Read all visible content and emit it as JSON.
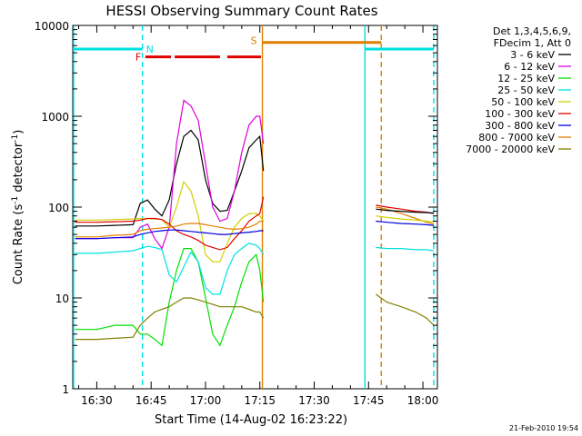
{
  "chart_data": {
    "type": "line",
    "title": "HESSI Observing Summary Count Rates",
    "xlabel": "Start Time (14-Aug-02 16:23:22)",
    "ylabel_main": "Count Rate (s",
    "ylabel_exp1": "-1",
    "ylabel_mid": " detector",
    "ylabel_exp2": "-1",
    "ylabel_end": ")",
    "yscale": "log",
    "ylim": [
      1,
      10000
    ],
    "xlim_minutes": [
      23.37,
      124.0
    ],
    "xticks": [
      {
        "m": 30,
        "label": "16:30"
      },
      {
        "m": 45,
        "label": "16:45"
      },
      {
        "m": 60,
        "label": "17:00"
      },
      {
        "m": 75,
        "label": "17:15"
      },
      {
        "m": 90,
        "label": "17:30"
      },
      {
        "m": 105,
        "label": "17:45"
      },
      {
        "m": 120,
        "label": "18:00"
      }
    ],
    "yticks": [
      {
        "v": 1,
        "label": "1"
      },
      {
        "v": 10,
        "label": "10"
      },
      {
        "v": 100,
        "label": "100"
      },
      {
        "v": 1000,
        "label": "1000"
      },
      {
        "v": 10000,
        "label": "10000"
      }
    ],
    "legend_header": [
      "Det 1,3,4,5,6,9,",
      "FDecim 1, Att 0"
    ],
    "series": [
      {
        "name": "3 - 6 keV",
        "color": "#000000",
        "x": [
          24,
          30,
          35,
          40,
          42,
          44,
          46,
          48,
          50,
          52,
          54,
          56,
          58,
          60,
          62,
          64,
          66,
          68,
          70,
          72,
          74,
          75,
          76
        ],
        "y": [
          62,
          62,
          63,
          64,
          110,
          120,
          95,
          80,
          120,
          300,
          600,
          700,
          550,
          200,
          110,
          90,
          92,
          150,
          250,
          450,
          550,
          600,
          250
        ]
      },
      {
        "name": "6 - 12 keV",
        "color": "#e000e0",
        "x": [
          24,
          30,
          35,
          40,
          42,
          44,
          46,
          48,
          50,
          52,
          54,
          56,
          58,
          60,
          62,
          64,
          66,
          68,
          70,
          72,
          74,
          75,
          76
        ],
        "y": [
          45,
          45,
          46,
          46,
          60,
          65,
          45,
          35,
          60,
          500,
          1500,
          1300,
          900,
          300,
          100,
          70,
          75,
          150,
          400,
          800,
          1000,
          1000,
          500
        ]
      },
      {
        "name": "12 - 25 keV",
        "color": "#00e000",
        "x": [
          24,
          30,
          35,
          40,
          42,
          44,
          46,
          48,
          50,
          52,
          54,
          56,
          58,
          60,
          62,
          64,
          66,
          68,
          70,
          72,
          74,
          75,
          76
        ],
        "y": [
          4.5,
          4.5,
          5,
          5,
          4,
          4,
          3.5,
          3,
          9,
          20,
          35,
          35,
          25,
          10,
          4,
          3,
          5,
          8,
          15,
          25,
          30,
          20,
          9
        ]
      },
      {
        "name": "25 - 50 keV",
        "color": "#00e0e0",
        "x": [
          24,
          30,
          35,
          40,
          42,
          44,
          46,
          48,
          50,
          52,
          54,
          56,
          58,
          60,
          62,
          64,
          66,
          68,
          70,
          72,
          74,
          75,
          76
        ],
        "y": [
          31,
          31,
          32,
          33,
          35,
          37,
          36,
          34,
          18,
          15,
          22,
          32,
          25,
          13,
          11,
          11,
          20,
          30,
          35,
          40,
          38,
          35,
          30
        ]
      },
      {
        "name": "50 - 100 keV",
        "color": "#d0d000",
        "x": [
          24,
          30,
          35,
          40,
          42,
          44,
          46,
          48,
          50,
          52,
          54,
          56,
          58,
          60,
          62,
          64,
          66,
          68,
          70,
          72,
          74,
          75,
          76
        ],
        "y": [
          72,
          72,
          73,
          74,
          75,
          75,
          74,
          73,
          60,
          100,
          190,
          150,
          80,
          30,
          25,
          25,
          40,
          60,
          75,
          85,
          85,
          80,
          70
        ]
      },
      {
        "name": "100 - 300 keV",
        "color": "#e00000",
        "x": [
          24,
          30,
          35,
          40,
          42,
          44,
          46,
          48,
          50,
          52,
          54,
          56,
          58,
          60,
          62,
          64,
          66,
          68,
          70,
          72,
          74,
          75,
          76
        ],
        "y": [
          68,
          68,
          69,
          70,
          72,
          75,
          75,
          73,
          65,
          55,
          50,
          47,
          43,
          38,
          36,
          34,
          36,
          45,
          55,
          70,
          80,
          85,
          130
        ]
      },
      {
        "name": "300 - 800 keV",
        "color": "#0000e0",
        "x": [
          24,
          30,
          35,
          40,
          42,
          44,
          46,
          48,
          50,
          52,
          54,
          56,
          58,
          60,
          62,
          64,
          66,
          68,
          70,
          72,
          74,
          75,
          76
        ],
        "y": [
          45,
          45,
          46,
          47,
          50,
          52,
          54,
          55,
          56,
          56,
          55,
          54,
          53,
          52,
          51,
          50,
          50,
          51,
          52,
          53,
          54,
          55,
          55
        ]
      },
      {
        "name": "800 - 7000 keV",
        "color": "#e08000",
        "x": [
          24,
          30,
          35,
          40,
          42,
          44,
          46,
          48,
          50,
          52,
          54,
          56,
          58,
          60,
          62,
          64,
          66,
          68,
          70,
          72,
          74,
          75,
          76
        ],
        "y": [
          47,
          47,
          49,
          50,
          55,
          57,
          58,
          59,
          60,
          62,
          65,
          66,
          66,
          64,
          62,
          60,
          58,
          57,
          58,
          60,
          65,
          70,
          70
        ]
      },
      {
        "name": "7000 - 20000 keV",
        "color": "#808000",
        "x": [
          24,
          30,
          35,
          40,
          42,
          44,
          46,
          48,
          50,
          52,
          54,
          56,
          58,
          60,
          62,
          64,
          66,
          68,
          70,
          72,
          74,
          75,
          76
        ],
        "y": [
          3.5,
          3.5,
          3.6,
          3.7,
          5,
          6,
          7,
          7.5,
          8,
          9,
          10,
          10,
          9.5,
          9,
          8.5,
          8,
          8,
          8,
          8,
          7.5,
          7,
          7,
          6
        ]
      }
    ],
    "late_series": [
      {
        "color": "#e00000",
        "x": [
          107,
          110,
          114,
          118,
          121,
          123
        ],
        "y": [
          105,
          100,
          95,
          90,
          88,
          85
        ]
      },
      {
        "color": "#808000",
        "x": [
          107,
          110,
          114,
          118,
          121,
          123
        ],
        "y": [
          11,
          9,
          8,
          7,
          6,
          5
        ]
      },
      {
        "color": "#e08000",
        "x": [
          107,
          110,
          114,
          118,
          121,
          123
        ],
        "y": [
          100,
          95,
          85,
          75,
          68,
          65
        ]
      },
      {
        "color": "#d0d000",
        "x": [
          107,
          110,
          114,
          118,
          121,
          123
        ],
        "y": [
          80,
          77,
          74,
          72,
          70,
          68
        ]
      },
      {
        "color": "#00e0e0",
        "x": [
          107,
          110,
          114,
          118,
          121,
          123
        ],
        "y": [
          36,
          35,
          35,
          34,
          34,
          33
        ]
      },
      {
        "color": "#0000e0",
        "x": [
          107,
          110,
          114,
          118,
          121,
          123
        ],
        "y": [
          70,
          68,
          66,
          65,
          64,
          63
        ]
      },
      {
        "color": "#000000",
        "x": [
          107,
          110,
          114,
          118,
          121,
          123
        ],
        "y": [
          95,
          92,
          90,
          88,
          87,
          86
        ]
      }
    ],
    "flags": {
      "night_color": "#00e0e0",
      "night_level": 5500,
      "night_segments": [
        [
          23.4,
          42.6
        ],
        [
          104.0,
          123.0
        ]
      ],
      "night_label": "N",
      "flare_color": "#e00000",
      "flare_level": 4500,
      "flare_segments": [
        [
          43.4,
          50.5
        ],
        [
          51.5,
          64.0
        ],
        [
          66.0,
          75.3
        ]
      ],
      "flare_label": "F",
      "saa_color": "#e08000",
      "saa_level": 6500,
      "saa_segments": [
        [
          75.7,
          108.5
        ]
      ],
      "saa_label": "S",
      "vlines": [
        {
          "m": 23.6,
          "color": "#00e0e0",
          "dashed": false
        },
        {
          "m": 42.6,
          "color": "#00e0e0",
          "dashed": true
        },
        {
          "m": 75.7,
          "color": "#e08000",
          "dashed": false
        },
        {
          "m": 104.0,
          "color": "#00e0e0",
          "dashed": false
        },
        {
          "m": 108.5,
          "color": "#e08000",
          "dashed": true
        },
        {
          "m": 123.0,
          "color": "#00e0e0",
          "dashed": true
        }
      ]
    },
    "grid": false,
    "legend_placement": "right"
  },
  "footer_stamp": "21-Feb-2010 19:54"
}
